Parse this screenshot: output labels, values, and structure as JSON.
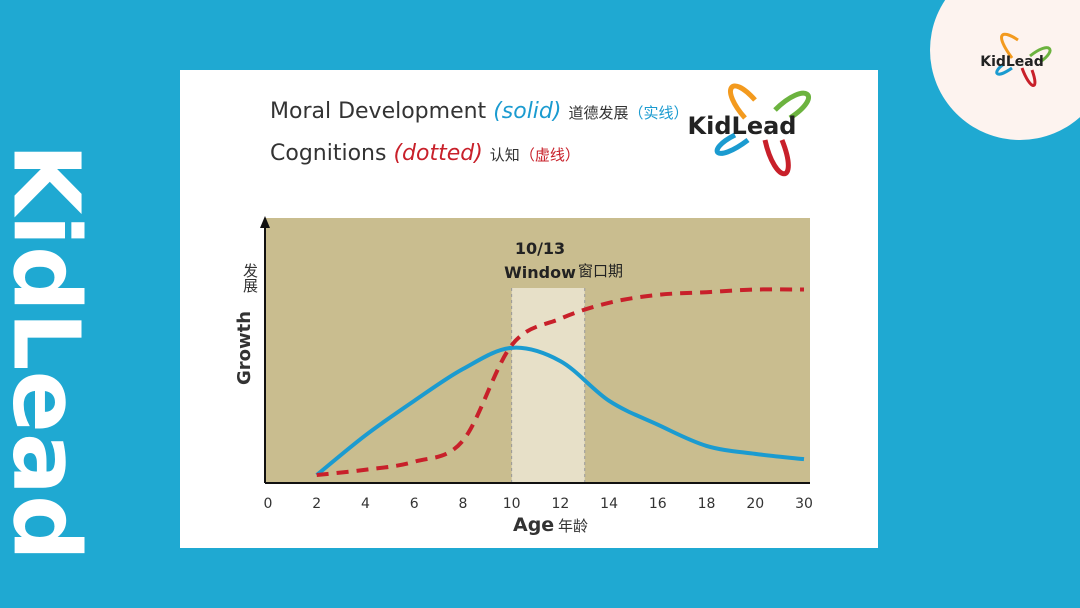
{
  "side_label": "KidLead",
  "logo": "KidLead",
  "chart_data": {
    "type": "line",
    "title": {
      "en1": "Moral Development",
      "en1_note": "(solid)",
      "zh1": "道德发展",
      "zh1_note": "（实线）",
      "en2": "Cognitions",
      "en2_note": "(dotted)",
      "zh2": "认知",
      "zh2_note": "（虚线）"
    },
    "y_label": "Growth",
    "y_label_zh": "发展",
    "x_label": "Age",
    "x_label_zh": "年龄",
    "annotation": {
      "line1": "10/13",
      "line2": "Window",
      "zh": "窗口期",
      "range": [
        10,
        13
      ]
    },
    "categories": [
      "0",
      "2",
      "4",
      "6",
      "8",
      "10",
      "12",
      "14",
      "16",
      "18",
      "20",
      "30"
    ],
    "ylim": [
      0,
      100
    ],
    "series": [
      {
        "name": "Moral Development",
        "color": "#1b9bd0",
        "style": "solid",
        "values": [
          null,
          3,
          18,
          31,
          43,
          51,
          46,
          31,
          22,
          14,
          11,
          9
        ]
      },
      {
        "name": "Cognitions",
        "color": "#c8202a",
        "style": "dashed",
        "values": [
          null,
          3,
          5,
          8,
          16,
          52,
          62,
          68,
          71,
          72,
          73,
          73
        ]
      }
    ]
  }
}
